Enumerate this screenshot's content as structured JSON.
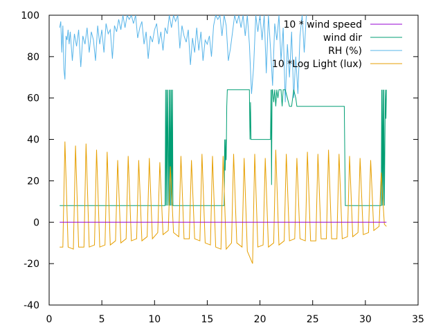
{
  "chart_data": {
    "type": "line",
    "title": "",
    "xlabel": "",
    "ylabel": "",
    "xlim": [
      0,
      35
    ],
    "ylim": [
      -40,
      100
    ],
    "xticks": [
      0,
      5,
      10,
      15,
      20,
      25,
      30,
      35
    ],
    "yticks": [
      -40,
      -20,
      0,
      20,
      40,
      60,
      80,
      100
    ],
    "xtick_labels": [
      "0",
      "5",
      "10",
      "15",
      "20",
      "25",
      "30",
      "35"
    ],
    "ytick_labels": [
      "-40",
      "-20",
      "0",
      "20",
      "40",
      "60",
      "80",
      "100"
    ],
    "grid": false,
    "legend_position": "top-right",
    "series": [
      {
        "name": "10 * wind speed",
        "color": "#9400d3",
        "x": [
          1,
          32
        ],
        "y": [
          0,
          0
        ]
      },
      {
        "name": "wind dir",
        "color": "#009e73",
        "x": [
          1,
          11.0,
          11.05,
          11.1,
          11.15,
          11.2,
          11.25,
          11.35,
          11.4,
          11.45,
          11.5,
          11.55,
          11.6,
          11.65,
          11.7,
          11.75,
          11.8,
          11.85,
          11.9,
          11.95,
          12.0,
          16.6,
          16.65,
          16.7,
          16.75,
          16.8,
          16.85,
          16.9,
          16.95,
          17.0,
          17.1,
          19.0,
          19.05,
          19.1,
          19.15,
          19.2,
          21.0,
          21.05,
          21.1,
          21.15,
          21.2,
          21.3,
          21.4,
          21.5,
          21.6,
          21.7,
          21.8,
          21.9,
          22.0,
          22.1,
          22.2,
          22.4,
          22.6,
          22.8,
          23.0,
          23.2,
          23.4,
          23.5,
          23.6,
          24.0,
          24.5,
          28.0,
          28.05,
          28.1,
          28.15,
          28.2,
          28.25,
          28.3,
          28.35,
          31.5,
          31.55,
          31.6,
          31.65,
          31.7,
          31.75,
          31.8,
          31.85,
          31.9,
          31.95,
          32.0
        ],
        "y": [
          8,
          8,
          64,
          8,
          64,
          8,
          64,
          8,
          64,
          8,
          64,
          8,
          64,
          8,
          64,
          8,
          8,
          8,
          8,
          8,
          8,
          8,
          40,
          25,
          40,
          30,
          56,
          64,
          64,
          64,
          64,
          64,
          40,
          58,
          40,
          40,
          40,
          64,
          18,
          64,
          64,
          58,
          64,
          56,
          64,
          60,
          64,
          64,
          64,
          56,
          64,
          64,
          60,
          56,
          56,
          64,
          60,
          56,
          56,
          56,
          56,
          56,
          30,
          8,
          8,
          8,
          8,
          8,
          8,
          8,
          64,
          8,
          64,
          8,
          64,
          8,
          36,
          64,
          50,
          64
        ]
      },
      {
        "name": "RH (%)",
        "color": "#56b4e9",
        "x": [
          1.0,
          1.1,
          1.2,
          1.3,
          1.4,
          1.5,
          1.6,
          1.7,
          1.8,
          1.9,
          2.0,
          2.2,
          2.4,
          2.6,
          2.8,
          3.0,
          3.2,
          3.4,
          3.6,
          3.8,
          4.0,
          4.2,
          4.4,
          4.6,
          4.8,
          5.0,
          5.2,
          5.4,
          5.6,
          5.8,
          6.0,
          6.2,
          6.4,
          6.6,
          6.8,
          7.0,
          7.2,
          7.4,
          7.6,
          7.8,
          8.0,
          8.2,
          8.4,
          8.6,
          8.8,
          9.0,
          9.2,
          9.4,
          9.6,
          9.8,
          10.0,
          10.2,
          10.4,
          10.6,
          10.8,
          11.0,
          11.2,
          11.4,
          11.6,
          11.8,
          12.0,
          12.2,
          12.4,
          12.6,
          12.8,
          13.0,
          13.2,
          13.4,
          13.6,
          13.8,
          14.0,
          14.2,
          14.4,
          14.6,
          14.8,
          15.0,
          15.2,
          15.4,
          15.6,
          15.8,
          16.0,
          16.2,
          16.4,
          16.6,
          16.8,
          17.0,
          17.2,
          17.4,
          17.6,
          17.8,
          18.0,
          18.2,
          18.4,
          18.6,
          18.8,
          19.0,
          19.2,
          19.4,
          19.6,
          19.8,
          20.0,
          20.2,
          20.4,
          20.6,
          20.8,
          21.0,
          21.2,
          21.4,
          21.6,
          21.8,
          22.0,
          22.2,
          22.4,
          22.6,
          22.8,
          23.0,
          23.2,
          23.4,
          23.6,
          23.8,
          24.0,
          24.2,
          24.4
        ],
        "y": [
          94,
          97,
          82,
          95,
          74,
          69,
          90,
          88,
          93,
          86,
          92,
          78,
          91,
          85,
          93,
          75,
          90,
          86,
          94,
          82,
          92,
          88,
          78,
          95,
          86,
          93,
          82,
          96,
          91,
          93,
          79,
          95,
          92,
          98,
          93,
          100,
          94,
          100,
          98,
          100,
          96,
          100,
          89,
          94,
          97,
          86,
          92,
          79,
          90,
          87,
          93,
          96,
          86,
          92,
          83,
          94,
          91,
          100,
          94,
          100,
          97,
          100,
          84,
          95,
          90,
          87,
          93,
          76,
          89,
          82,
          94,
          83,
          92,
          78,
          88,
          86,
          90,
          80,
          95,
          100,
          98,
          100,
          90,
          100,
          95,
          78,
          84,
          92,
          100,
          96,
          100,
          94,
          100,
          90,
          100,
          86,
          62,
          75,
          100,
          92,
          100,
          88,
          100,
          72,
          100,
          84,
          66,
          96,
          88,
          100,
          78,
          94,
          58,
          86,
          70,
          92,
          60,
          80,
          62,
          90,
          100,
          82,
          100
        ]
      },
      {
        "name": "10 *Log Light (lux)",
        "color": "#e69f00",
        "x": [
          1.0,
          1.3,
          1.5,
          1.8,
          2.3,
          2.5,
          2.8,
          3.3,
          3.5,
          3.8,
          4.3,
          4.5,
          4.8,
          5.3,
          5.5,
          5.8,
          6.3,
          6.5,
          6.8,
          7.3,
          7.5,
          7.8,
          8.3,
          8.5,
          8.8,
          9.3,
          9.5,
          9.8,
          10.3,
          10.5,
          10.8,
          11.3,
          11.5,
          11.8,
          12.3,
          12.5,
          12.8,
          13.3,
          13.5,
          13.8,
          14.3,
          14.5,
          14.8,
          15.3,
          15.5,
          15.8,
          16.3,
          16.5,
          16.8,
          17.3,
          17.5,
          17.8,
          18.3,
          18.5,
          18.8,
          19.3,
          19.5,
          19.8,
          20.3,
          20.5,
          20.8,
          21.3,
          21.5,
          21.8,
          22.3,
          22.5,
          22.8,
          23.3,
          23.5,
          23.8,
          24.3,
          24.5,
          24.8,
          25.3,
          25.5,
          25.8,
          26.3,
          26.5,
          26.8,
          27.3,
          27.5,
          27.8,
          28.3,
          28.5,
          28.8,
          29.3,
          29.5,
          29.8,
          30.3,
          30.5,
          30.8,
          31.3,
          31.5,
          31.8,
          32.0
        ],
        "y": [
          -12,
          -12,
          39,
          -12,
          -13,
          37,
          -12,
          -12,
          38,
          -12,
          -11,
          35,
          -12,
          -11,
          34,
          -11,
          -9,
          30,
          -10,
          -8,
          32,
          -9,
          -8,
          30,
          -9,
          -7,
          31,
          -8,
          -5,
          29,
          -6,
          -4,
          27,
          -5,
          -7,
          32,
          -8,
          -8,
          30,
          -8,
          -9,
          33,
          -10,
          -11,
          32,
          -12,
          -13,
          32,
          -13,
          -10,
          33,
          -10,
          -12,
          31,
          -14,
          -20,
          33,
          -12,
          -11,
          31,
          -12,
          -10,
          35,
          -11,
          -9,
          33,
          -9,
          -8,
          31,
          -8,
          -9,
          34,
          -9,
          -9,
          33,
          -8,
          -8,
          35,
          -8,
          -8,
          33,
          -8,
          -7,
          32,
          -7,
          -5,
          31,
          -6,
          -5,
          30,
          -4,
          -2,
          24,
          -1,
          -2
        ]
      }
    ]
  }
}
